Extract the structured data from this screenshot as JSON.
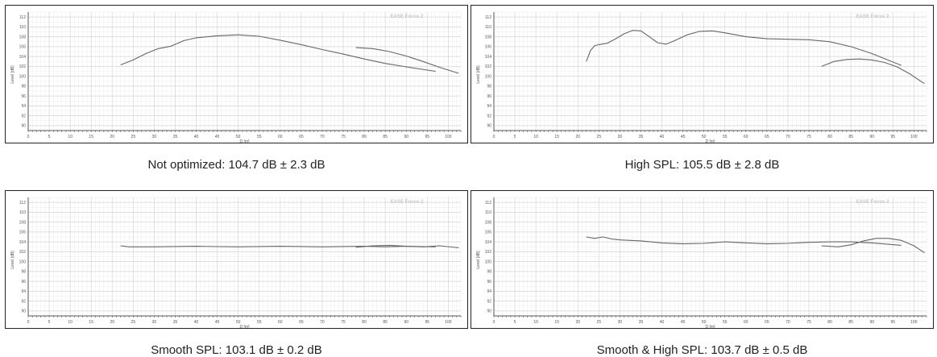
{
  "chart_data": [
    {
      "type": "line",
      "caption": "Not optimized: 104.7 dB ± 2.3 dB",
      "watermark": "EASE Focus 2",
      "xlabel": "D [m]",
      "ylabel": "Level [dB]",
      "xlim": [
        0,
        103
      ],
      "ylim": [
        89,
        113
      ],
      "xticks": [
        0,
        5,
        10,
        15,
        20,
        25,
        30,
        35,
        40,
        45,
        50,
        55,
        60,
        65,
        70,
        75,
        80,
        85,
        90,
        95,
        100
      ],
      "yticks": [
        90,
        92,
        94,
        96,
        98,
        100,
        102,
        104,
        106,
        108,
        110,
        112
      ],
      "grid": true,
      "series": [
        {
          "x": [
            22,
            25,
            28,
            31,
            34,
            37,
            40,
            45,
            50,
            55,
            60,
            65,
            70,
            75,
            80,
            85,
            90,
            97
          ],
          "y": [
            102.3,
            103.3,
            104.6,
            105.6,
            106.1,
            107.2,
            107.8,
            108.2,
            108.4,
            108.1,
            107.3,
            106.4,
            105.4,
            104.5,
            103.5,
            102.6,
            101.9,
            101.0
          ]
        },
        {
          "x": [
            78,
            82,
            86,
            90,
            94,
            98,
            102.5
          ],
          "y": [
            105.8,
            105.6,
            105.0,
            104.1,
            103.0,
            101.8,
            100.6
          ]
        }
      ]
    },
    {
      "type": "line",
      "caption": "High SPL: 105.5 dB ± 2.8 dB",
      "watermark": "EASE Focus 2",
      "xlabel": "D [m]",
      "ylabel": "Level [dB]",
      "xlim": [
        0,
        103
      ],
      "ylim": [
        89,
        113
      ],
      "xticks": [
        0,
        5,
        10,
        15,
        20,
        25,
        30,
        35,
        40,
        45,
        50,
        55,
        60,
        65,
        70,
        75,
        80,
        85,
        90,
        95,
        100
      ],
      "yticks": [
        90,
        92,
        94,
        96,
        98,
        100,
        102,
        104,
        106,
        108,
        110,
        112
      ],
      "grid": true,
      "series": [
        {
          "x": [
            22,
            23,
            24,
            25,
            27,
            29,
            31,
            33,
            35,
            37,
            39,
            41,
            43,
            46,
            49,
            52,
            55,
            60,
            65,
            70,
            75,
            80,
            85,
            90,
            97
          ],
          "y": [
            103.0,
            105.2,
            106.2,
            106.4,
            106.7,
            107.6,
            108.6,
            109.3,
            109.2,
            108.0,
            106.8,
            106.5,
            107.2,
            108.4,
            109.1,
            109.2,
            108.8,
            108.0,
            107.6,
            107.5,
            107.4,
            107.0,
            106.0,
            104.6,
            102.2
          ]
        },
        {
          "x": [
            78,
            81,
            84,
            87,
            90,
            93,
            96,
            99,
            102.5
          ],
          "y": [
            102.0,
            103.0,
            103.4,
            103.5,
            103.3,
            102.8,
            101.9,
            100.5,
            98.5
          ]
        }
      ]
    },
    {
      "type": "line",
      "caption": "Smooth SPL: 103.1 dB ± 0.2 dB",
      "watermark": "EASE Focus 2",
      "xlabel": "D [m]",
      "ylabel": "Level [dB]",
      "xlim": [
        0,
        103
      ],
      "ylim": [
        89,
        113
      ],
      "xticks": [
        0,
        5,
        10,
        15,
        20,
        25,
        30,
        35,
        40,
        45,
        50,
        55,
        60,
        65,
        70,
        75,
        80,
        85,
        90,
        95,
        100
      ],
      "yticks": [
        90,
        92,
        94,
        96,
        98,
        100,
        102,
        104,
        106,
        108,
        110,
        112
      ],
      "grid": true,
      "series": [
        {
          "x": [
            22,
            24,
            30,
            40,
            50,
            60,
            70,
            80,
            85,
            90,
            97
          ],
          "y": [
            103.2,
            103.0,
            103.0,
            103.1,
            103.0,
            103.1,
            103.0,
            103.1,
            103.0,
            103.1,
            103.0
          ]
        },
        {
          "x": [
            78,
            82,
            86,
            90,
            94,
            98,
            102.5
          ],
          "y": [
            102.9,
            103.2,
            103.3,
            103.1,
            103.0,
            103.2,
            102.8
          ]
        }
      ]
    },
    {
      "type": "line",
      "caption": "Smooth & High SPL: 103.7 dB ± 0.5 dB",
      "watermark": "EASE Focus 2",
      "xlabel": "D [m]",
      "ylabel": "Level [dB]",
      "xlim": [
        0,
        103
      ],
      "ylim": [
        89,
        113
      ],
      "xticks": [
        0,
        5,
        10,
        15,
        20,
        25,
        30,
        35,
        40,
        45,
        50,
        55,
        60,
        65,
        70,
        75,
        80,
        85,
        90,
        95,
        100
      ],
      "yticks": [
        90,
        92,
        94,
        96,
        98,
        100,
        102,
        104,
        106,
        108,
        110,
        112
      ],
      "grid": true,
      "series": [
        {
          "x": [
            22,
            24,
            26,
            28,
            30,
            35,
            40,
            45,
            50,
            55,
            60,
            65,
            70,
            75,
            80,
            85,
            90,
            97
          ],
          "y": [
            105.0,
            104.7,
            105.0,
            104.6,
            104.4,
            104.2,
            103.8,
            103.6,
            103.7,
            104.0,
            103.8,
            103.6,
            103.7,
            103.9,
            104.0,
            104.0,
            103.8,
            103.3
          ]
        },
        {
          "x": [
            78,
            82,
            85,
            88,
            91,
            94,
            97,
            100,
            102.5
          ],
          "y": [
            103.2,
            103.0,
            103.4,
            104.2,
            104.7,
            104.7,
            104.3,
            103.2,
            101.8
          ]
        }
      ]
    }
  ]
}
